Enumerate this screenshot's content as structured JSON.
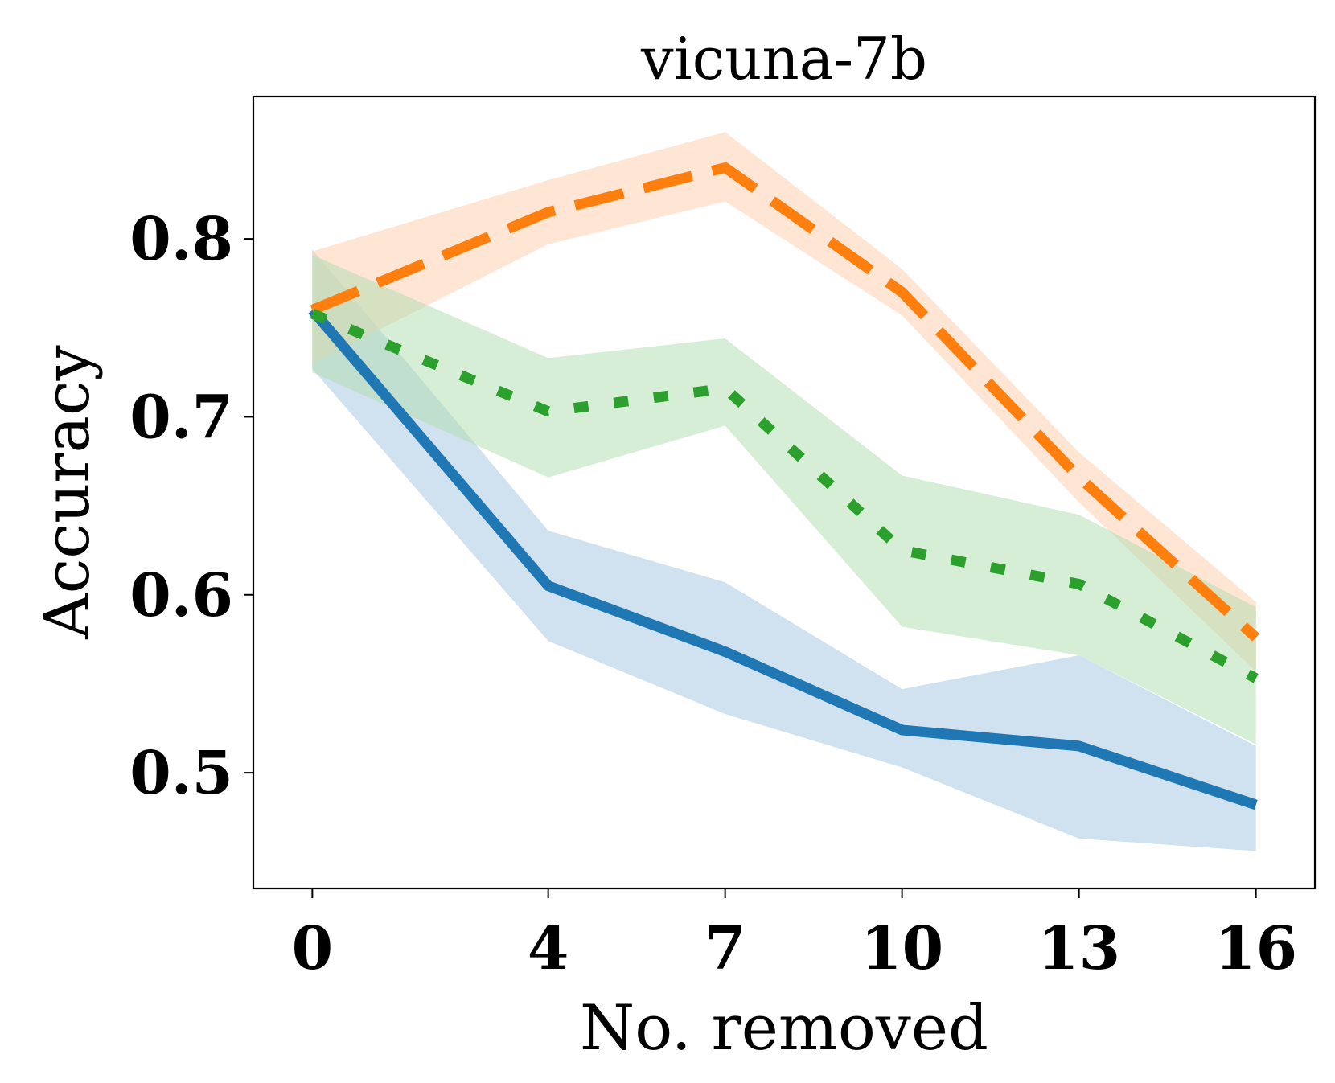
{
  "chart_data": {
    "type": "line",
    "title": "vicuna-7b",
    "xlabel": "No. removed",
    "ylabel": "Accuracy",
    "x": [
      0,
      4,
      7,
      10,
      13,
      16
    ],
    "x_tick_labels": [
      "0",
      "4",
      "7",
      "10",
      "13",
      "16"
    ],
    "y_ticks": [
      0.5,
      0.6,
      0.7,
      0.8
    ],
    "y_tick_labels": [
      "0.5",
      "0.6",
      "0.7",
      "0.8"
    ],
    "xlim": [
      -1,
      17
    ],
    "ylim": [
      0.435,
      0.88
    ],
    "grid": false,
    "series": [
      {
        "name": "solid-blue",
        "color": "#1f77b4",
        "band_color": "#a9c8e4",
        "line_style": "solid",
        "values": [
          0.76,
          0.605,
          0.568,
          0.524,
          0.515,
          0.482
        ],
        "lower": [
          0.727,
          0.574,
          0.533,
          0.503,
          0.463,
          0.456
        ],
        "upper": [
          0.794,
          0.636,
          0.607,
          0.547,
          0.566,
          0.515
        ]
      },
      {
        "name": "dashed-orange",
        "color": "#ff7f0e",
        "band_color": "#ffd0ae",
        "line_style": "dashed",
        "values": [
          0.76,
          0.815,
          0.84,
          0.77,
          0.666,
          0.576
        ],
        "lower": [
          0.73,
          0.797,
          0.821,
          0.757,
          0.652,
          0.557
        ],
        "upper": [
          0.793,
          0.833,
          0.86,
          0.783,
          0.68,
          0.596
        ]
      },
      {
        "name": "dotted-green",
        "color": "#2ca02c",
        "band_color": "#b4dfb4",
        "line_style": "dotted",
        "values": [
          0.758,
          0.703,
          0.716,
          0.625,
          0.606,
          0.553
        ],
        "lower": [
          0.725,
          0.666,
          0.695,
          0.582,
          0.566,
          0.516
        ],
        "upper": [
          0.791,
          0.733,
          0.744,
          0.667,
          0.645,
          0.593
        ]
      }
    ]
  }
}
